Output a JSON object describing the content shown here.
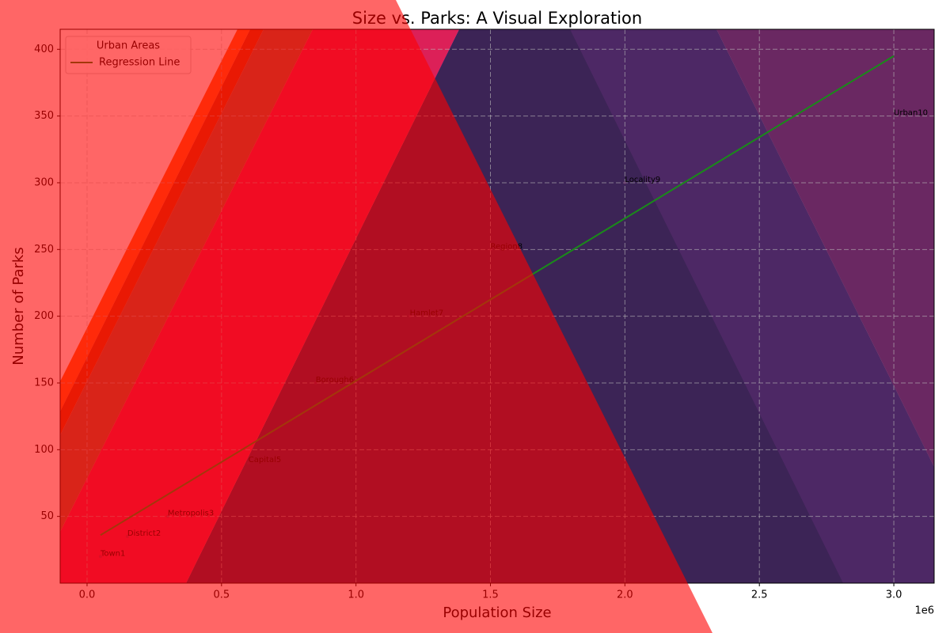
{
  "chart_data": {
    "type": "scatter",
    "title": "Size vs. Parks: A Visual Exploration",
    "x_label": "Population Size",
    "y_label": "Number of Parks",
    "x_offset_label": "1e6",
    "legend_title": "Urban Areas",
    "legend_position": "upper left",
    "grid": true,
    "xlim": [
      -100000,
      3150000
    ],
    "ylim": [
      0,
      415
    ],
    "xticks": [
      {
        "value": 0,
        "label": "0.0"
      },
      {
        "value": 500000,
        "label": "0.5"
      },
      {
        "value": 1000000,
        "label": "1.0"
      },
      {
        "value": 1500000,
        "label": "1.5"
      },
      {
        "value": 2000000,
        "label": "2.0"
      },
      {
        "value": 2500000,
        "label": "2.5"
      },
      {
        "value": 3000000,
        "label": "3.0"
      }
    ],
    "yticks": [
      50,
      100,
      150,
      200,
      250,
      300,
      350,
      400
    ],
    "points": {
      "labels": [
        "Town1",
        "District2",
        "Metropolis3",
        "Capital5",
        "Borough6",
        "Hamlet7",
        "Region8",
        "Locality9",
        "Urban10"
      ],
      "x": [
        50000,
        150000,
        300000,
        600000,
        850000,
        1200000,
        1500000,
        2000000,
        3000000
      ],
      "values": [
        20,
        35,
        50,
        90,
        150,
        200,
        250,
        300,
        350
      ]
    },
    "series": [
      {
        "name": "Regression Line",
        "color": "#1a8a1a",
        "x": [
          50000,
          3000000
        ],
        "values": [
          36,
          395
        ]
      }
    ]
  }
}
